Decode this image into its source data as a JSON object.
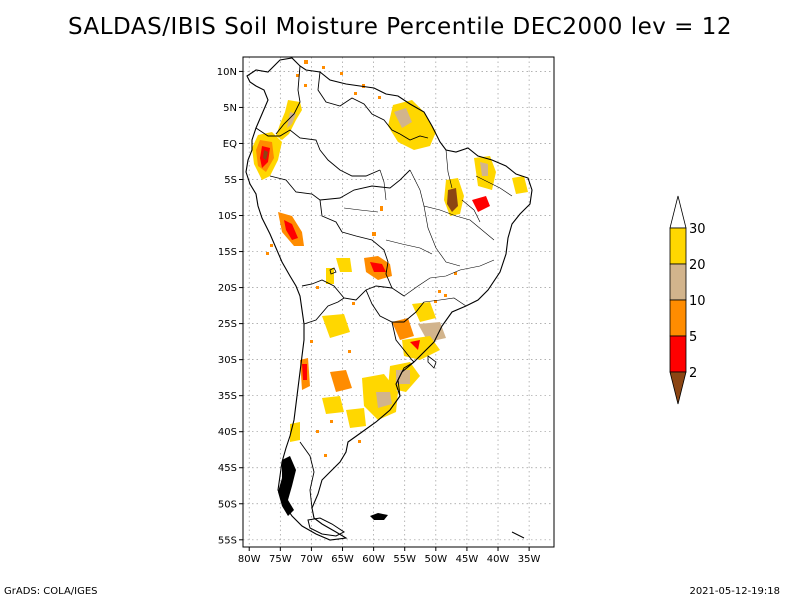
{
  "title": "SALDAS/IBIS Soil Moisture Percentile DEC2000 lev = 12",
  "footer": {
    "left": "GrADS: COLA/IGES",
    "right": "2021-05-12-19:18"
  },
  "map": {
    "lon_min": -81,
    "lon_max": -31,
    "lat_min": -56,
    "lat_max": 12,
    "lat_ticks": [
      {
        "value": 10,
        "label": "10N"
      },
      {
        "value": 5,
        "label": "5N"
      },
      {
        "value": 0,
        "label": "EQ"
      },
      {
        "value": -5,
        "label": "5S"
      },
      {
        "value": -10,
        "label": "10S"
      },
      {
        "value": -15,
        "label": "15S"
      },
      {
        "value": -20,
        "label": "20S"
      },
      {
        "value": -25,
        "label": "25S"
      },
      {
        "value": -30,
        "label": "30S"
      },
      {
        "value": -35,
        "label": "35S"
      },
      {
        "value": -40,
        "label": "40S"
      },
      {
        "value": -45,
        "label": "45S"
      },
      {
        "value": -50,
        "label": "50S"
      },
      {
        "value": -55,
        "label": "55S"
      }
    ],
    "lon_ticks": [
      {
        "value": -80,
        "label": "80W"
      },
      {
        "value": -75,
        "label": "75W"
      },
      {
        "value": -70,
        "label": "70W"
      },
      {
        "value": -65,
        "label": "65W"
      },
      {
        "value": -60,
        "label": "60W"
      },
      {
        "value": -55,
        "label": "55W"
      },
      {
        "value": -50,
        "label": "50W"
      },
      {
        "value": -45,
        "label": "45W"
      },
      {
        "value": -40,
        "label": "40W"
      },
      {
        "value": -35,
        "label": "35W"
      }
    ]
  },
  "legend": {
    "bins": [
      {
        "color": "#8b4513"
      },
      {
        "color": "#ff0000"
      },
      {
        "color": "#ff8c00"
      },
      {
        "color": "#d2b48c"
      },
      {
        "color": "#ffd700"
      },
      {
        "color": "#ffffff"
      }
    ],
    "labels": [
      "2",
      "5",
      "10",
      "20",
      "30"
    ]
  },
  "colors": {
    "brown": "#8b4513",
    "red": "#ff0000",
    "orange": "#ff8c00",
    "tan": "#d2b48c",
    "yellow": "#ffd700"
  }
}
